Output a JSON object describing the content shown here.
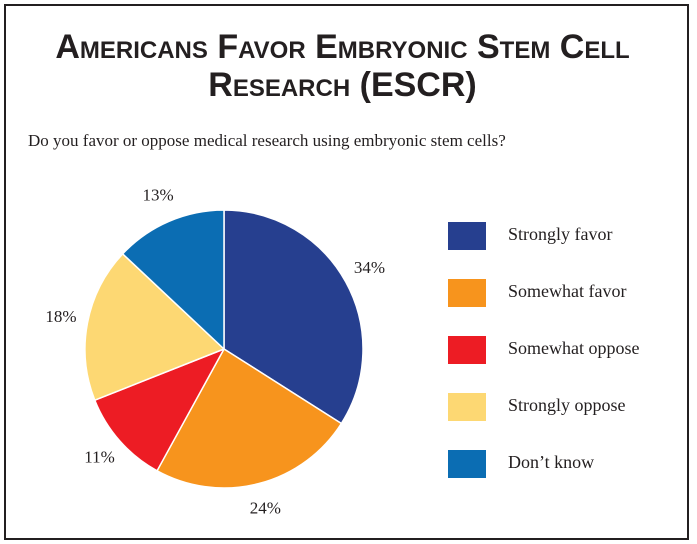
{
  "title_lines": [
    "Americans Favor Embryonic Stem Cell",
    "Research (ESCR)"
  ],
  "question": "Do you favor or oppose medical research using embryonic stem cells?",
  "chart_data": {
    "type": "pie",
    "title": "Americans Favor Embryonic Stem Cell Research (ESCR)",
    "subtitle": "Do you favor or oppose medical research using embryonic stem cells?",
    "legend_position": "right",
    "start_angle_deg": 0,
    "direction": "clockwise",
    "slices": [
      {
        "label": "Strongly favor",
        "value": 34,
        "value_label": "34%",
        "color": "#263f8f"
      },
      {
        "label": "Somewhat favor",
        "value": 24,
        "value_label": "24%",
        "color": "#f7941d"
      },
      {
        "label": "Somewhat oppose",
        "value": 11,
        "value_label": "11%",
        "color": "#ed1c24"
      },
      {
        "label": "Strongly oppose",
        "value": 18,
        "value_label": "18%",
        "color": "#fdd873"
      },
      {
        "label": "Don’t know",
        "value": 13,
        "value_label": "13%",
        "color": "#0b6db3"
      }
    ]
  }
}
